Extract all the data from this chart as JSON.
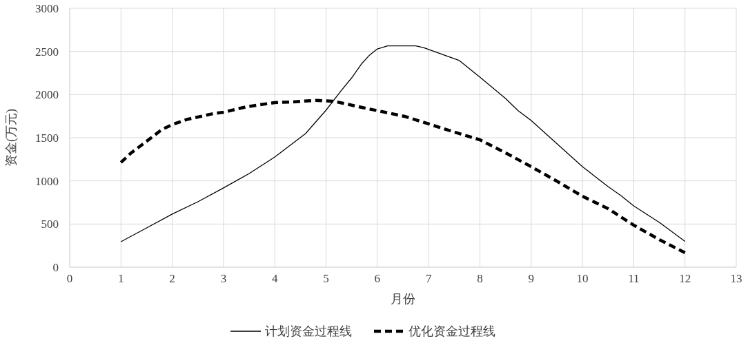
{
  "chart_data": {
    "type": "line",
    "xlabel": "月份",
    "ylabel": "资金(万元)",
    "xlim": [
      0,
      13
    ],
    "xticks": [
      0,
      1,
      2,
      3,
      4,
      5,
      6,
      7,
      8,
      9,
      10,
      11,
      12,
      13
    ],
    "ylim": [
      0,
      3000
    ],
    "yticks": [
      0,
      500,
      1000,
      1500,
      2000,
      2500,
      3000
    ],
    "grid": true,
    "legend": "bottom",
    "series": [
      {
        "name": "计划资金过程线",
        "color": "#000000",
        "line_style": "solid",
        "x": [
          1,
          1.5,
          2,
          2.5,
          3,
          3.5,
          4,
          4.6,
          5,
          5.3,
          5.5,
          5.7,
          5.85,
          6,
          6.2,
          6.75,
          6.9,
          7.3,
          7.6,
          8,
          8.5,
          8.75,
          9,
          10,
          10.5,
          10.75,
          11,
          11.5,
          12
        ],
        "values": [
          295,
          455,
          615,
          758,
          918,
          1085,
          1277,
          1548,
          1819,
          2050,
          2194,
          2362,
          2458,
          2529,
          2564,
          2564,
          2545,
          2458,
          2394,
          2202,
          1955,
          1811,
          1700,
          1165,
          933,
          830,
          710,
          519,
          300
        ]
      },
      {
        "name": "优化资金过程线",
        "color": "#000000",
        "line_style": "dashed",
        "x": [
          1,
          1.2,
          1.45,
          1.8,
          2,
          2.3,
          2.8,
          3,
          3.45,
          4,
          4.35,
          4.8,
          5.15,
          5.7,
          6.15,
          6.55,
          7,
          7.5,
          8,
          8.5,
          9,
          9.5,
          10,
          10.5,
          11,
          11.5,
          12
        ],
        "values": [
          1213,
          1325,
          1436,
          1596,
          1652,
          1714,
          1779,
          1795,
          1859,
          1907,
          1915,
          1933,
          1923,
          1851,
          1795,
          1745,
          1660,
          1566,
          1476,
          1325,
          1165,
          997,
          822,
          678,
          487,
          319,
          168
        ]
      }
    ]
  }
}
